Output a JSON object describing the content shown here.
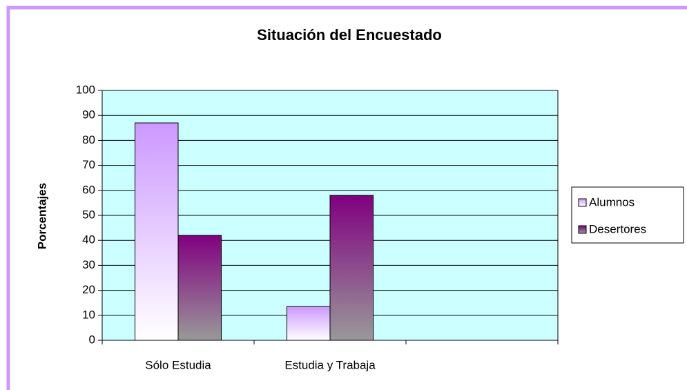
{
  "chart_data": {
    "type": "bar",
    "title": "Situación del Encuestado",
    "y_label": "Porcentajes",
    "categories": [
      "Sólo Estudia",
      "Estudia y Trabaja",
      null
    ],
    "series": [
      {
        "name": "Alumnos",
        "color": "#cc99ff",
        "values": [
          87,
          13.5,
          null
        ]
      },
      {
        "name": "Desertores",
        "color": "#800080",
        "values": [
          42,
          58,
          null
        ]
      }
    ],
    "ylim": [
      0,
      100
    ],
    "yticks": [
      0,
      10,
      20,
      30,
      40,
      50,
      60,
      70,
      80,
      90,
      100
    ],
    "grid": true,
    "legend": "right",
    "plot_background": "#ccffff"
  }
}
